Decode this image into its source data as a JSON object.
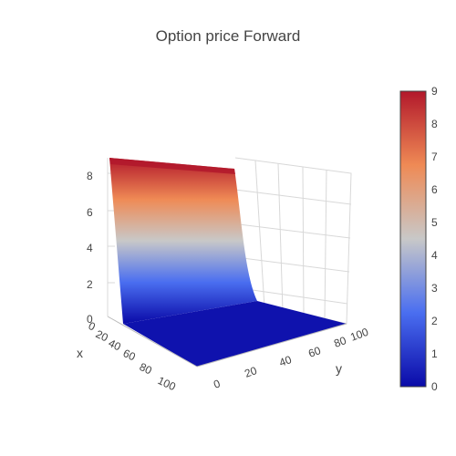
{
  "chart_data": {
    "type": "surface",
    "title": "Option price Forward",
    "axes": {
      "x": {
        "label": "x",
        "range": [
          0,
          100
        ],
        "ticks": [
          0,
          20,
          40,
          60,
          80,
          100
        ]
      },
      "y": {
        "label": "y",
        "range": [
          0,
          100
        ],
        "ticks": [
          0,
          20,
          40,
          60,
          80,
          100
        ]
      },
      "z": {
        "range": [
          0,
          9
        ],
        "ticks": [
          0,
          2,
          4,
          6,
          8
        ]
      }
    },
    "colorbar": {
      "min": 0,
      "max": 9,
      "ticks": [
        0,
        1,
        2,
        3,
        4,
        5,
        6,
        7,
        8,
        9
      ]
    },
    "colorscale": [
      "#0a0aa8",
      "#4a6ef0",
      "#c8c8c8",
      "#ef8a55",
      "#b2182b"
    ],
    "surface_profile": {
      "description_axis": "y",
      "y": [
        0,
        5,
        10,
        12.5,
        15,
        17.5,
        20,
        25,
        30,
        40,
        60,
        80,
        100
      ],
      "z": [
        9,
        8.9,
        8.8,
        8.0,
        4.0,
        1.2,
        0.5,
        0.25,
        0.15,
        0.08,
        0.03,
        0.01,
        0
      ]
    },
    "grid": true
  }
}
